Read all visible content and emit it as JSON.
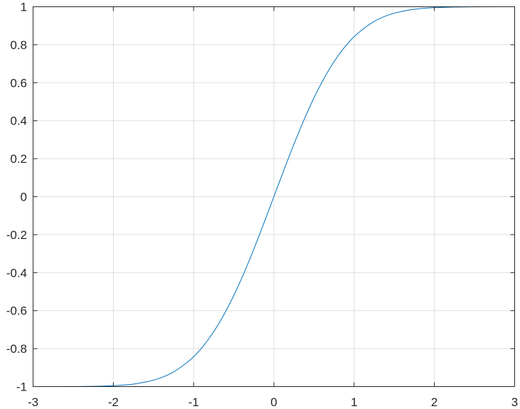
{
  "chart_data": {
    "type": "line",
    "title": "",
    "xlabel": "",
    "ylabel": "",
    "xlim": [
      -3,
      3
    ],
    "ylim": [
      -1,
      1
    ],
    "grid": true,
    "xticks": [
      "-3",
      "-2",
      "-1",
      "0",
      "1",
      "2",
      "3"
    ],
    "yticks": [
      "-1",
      "-0.8",
      "-0.6",
      "-0.4",
      "-0.2",
      "0",
      "0.2",
      "0.4",
      "0.6",
      "0.8",
      "1"
    ],
    "line_color": "#0072BD",
    "series": [
      {
        "x": [
          0,
          0.125,
          0.25,
          0.375,
          0.5,
          0.625,
          0.75,
          0.875,
          1,
          1.125,
          1.25,
          1.375,
          1.5,
          1.625,
          1.75,
          1.875,
          2,
          2.25,
          2.5,
          2.75,
          3
        ],
        "y": [
          0,
          0.1403,
          0.2763,
          0.4041,
          0.5205,
          0.6232,
          0.7112,
          0.784,
          0.8427,
          0.8868,
          0.9229,
          0.9483,
          0.9661,
          0.978,
          0.9867,
          0.992,
          0.9953,
          0.9985,
          0.9996,
          0.9999,
          1.0
        ],
        "symmetry": "odd"
      }
    ]
  }
}
